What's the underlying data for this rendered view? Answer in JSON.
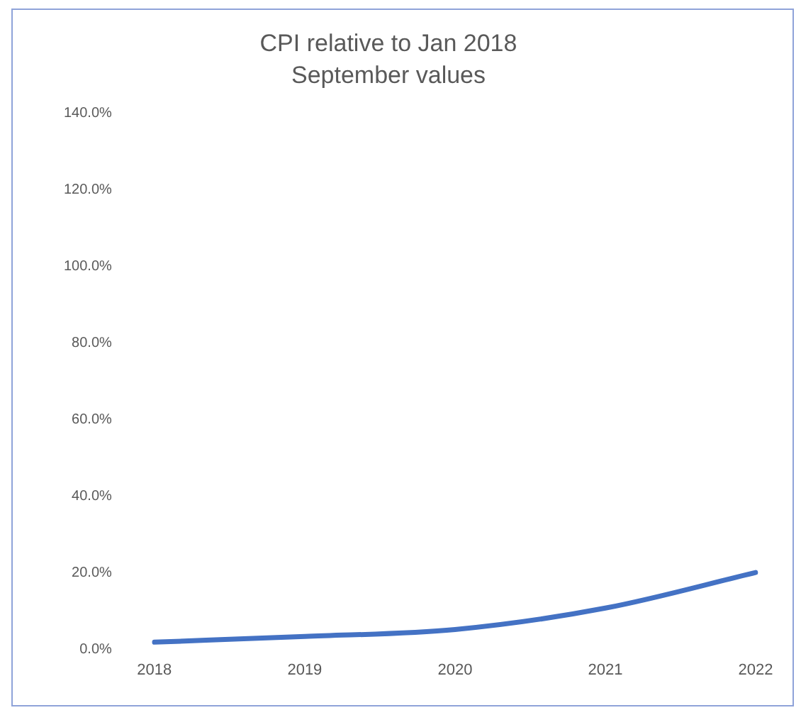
{
  "chart_data": {
    "type": "line",
    "title": "CPI relative to Jan 2018",
    "subtitle": "September values",
    "categories": [
      "2018",
      "2019",
      "2020",
      "2021",
      "2022"
    ],
    "series": [
      {
        "color": "#4472c4",
        "values": [
          1.9,
          3.4,
          5.2,
          10.8,
          20.1
        ]
      }
    ],
    "ylim": [
      0,
      140
    ],
    "yticks": [
      {
        "value": 0,
        "label": "0.0%"
      },
      {
        "value": 20,
        "label": "20.0%"
      },
      {
        "value": 40,
        "label": "40.0%"
      },
      {
        "value": 60,
        "label": "60.0%"
      },
      {
        "value": 80,
        "label": "80.0%"
      },
      {
        "value": 100,
        "label": "100.0%"
      },
      {
        "value": 120,
        "label": "120.0%"
      },
      {
        "value": 140,
        "label": "140.0%"
      }
    ],
    "grid": false,
    "legend": false,
    "marker": "none",
    "line_style": "solid"
  }
}
